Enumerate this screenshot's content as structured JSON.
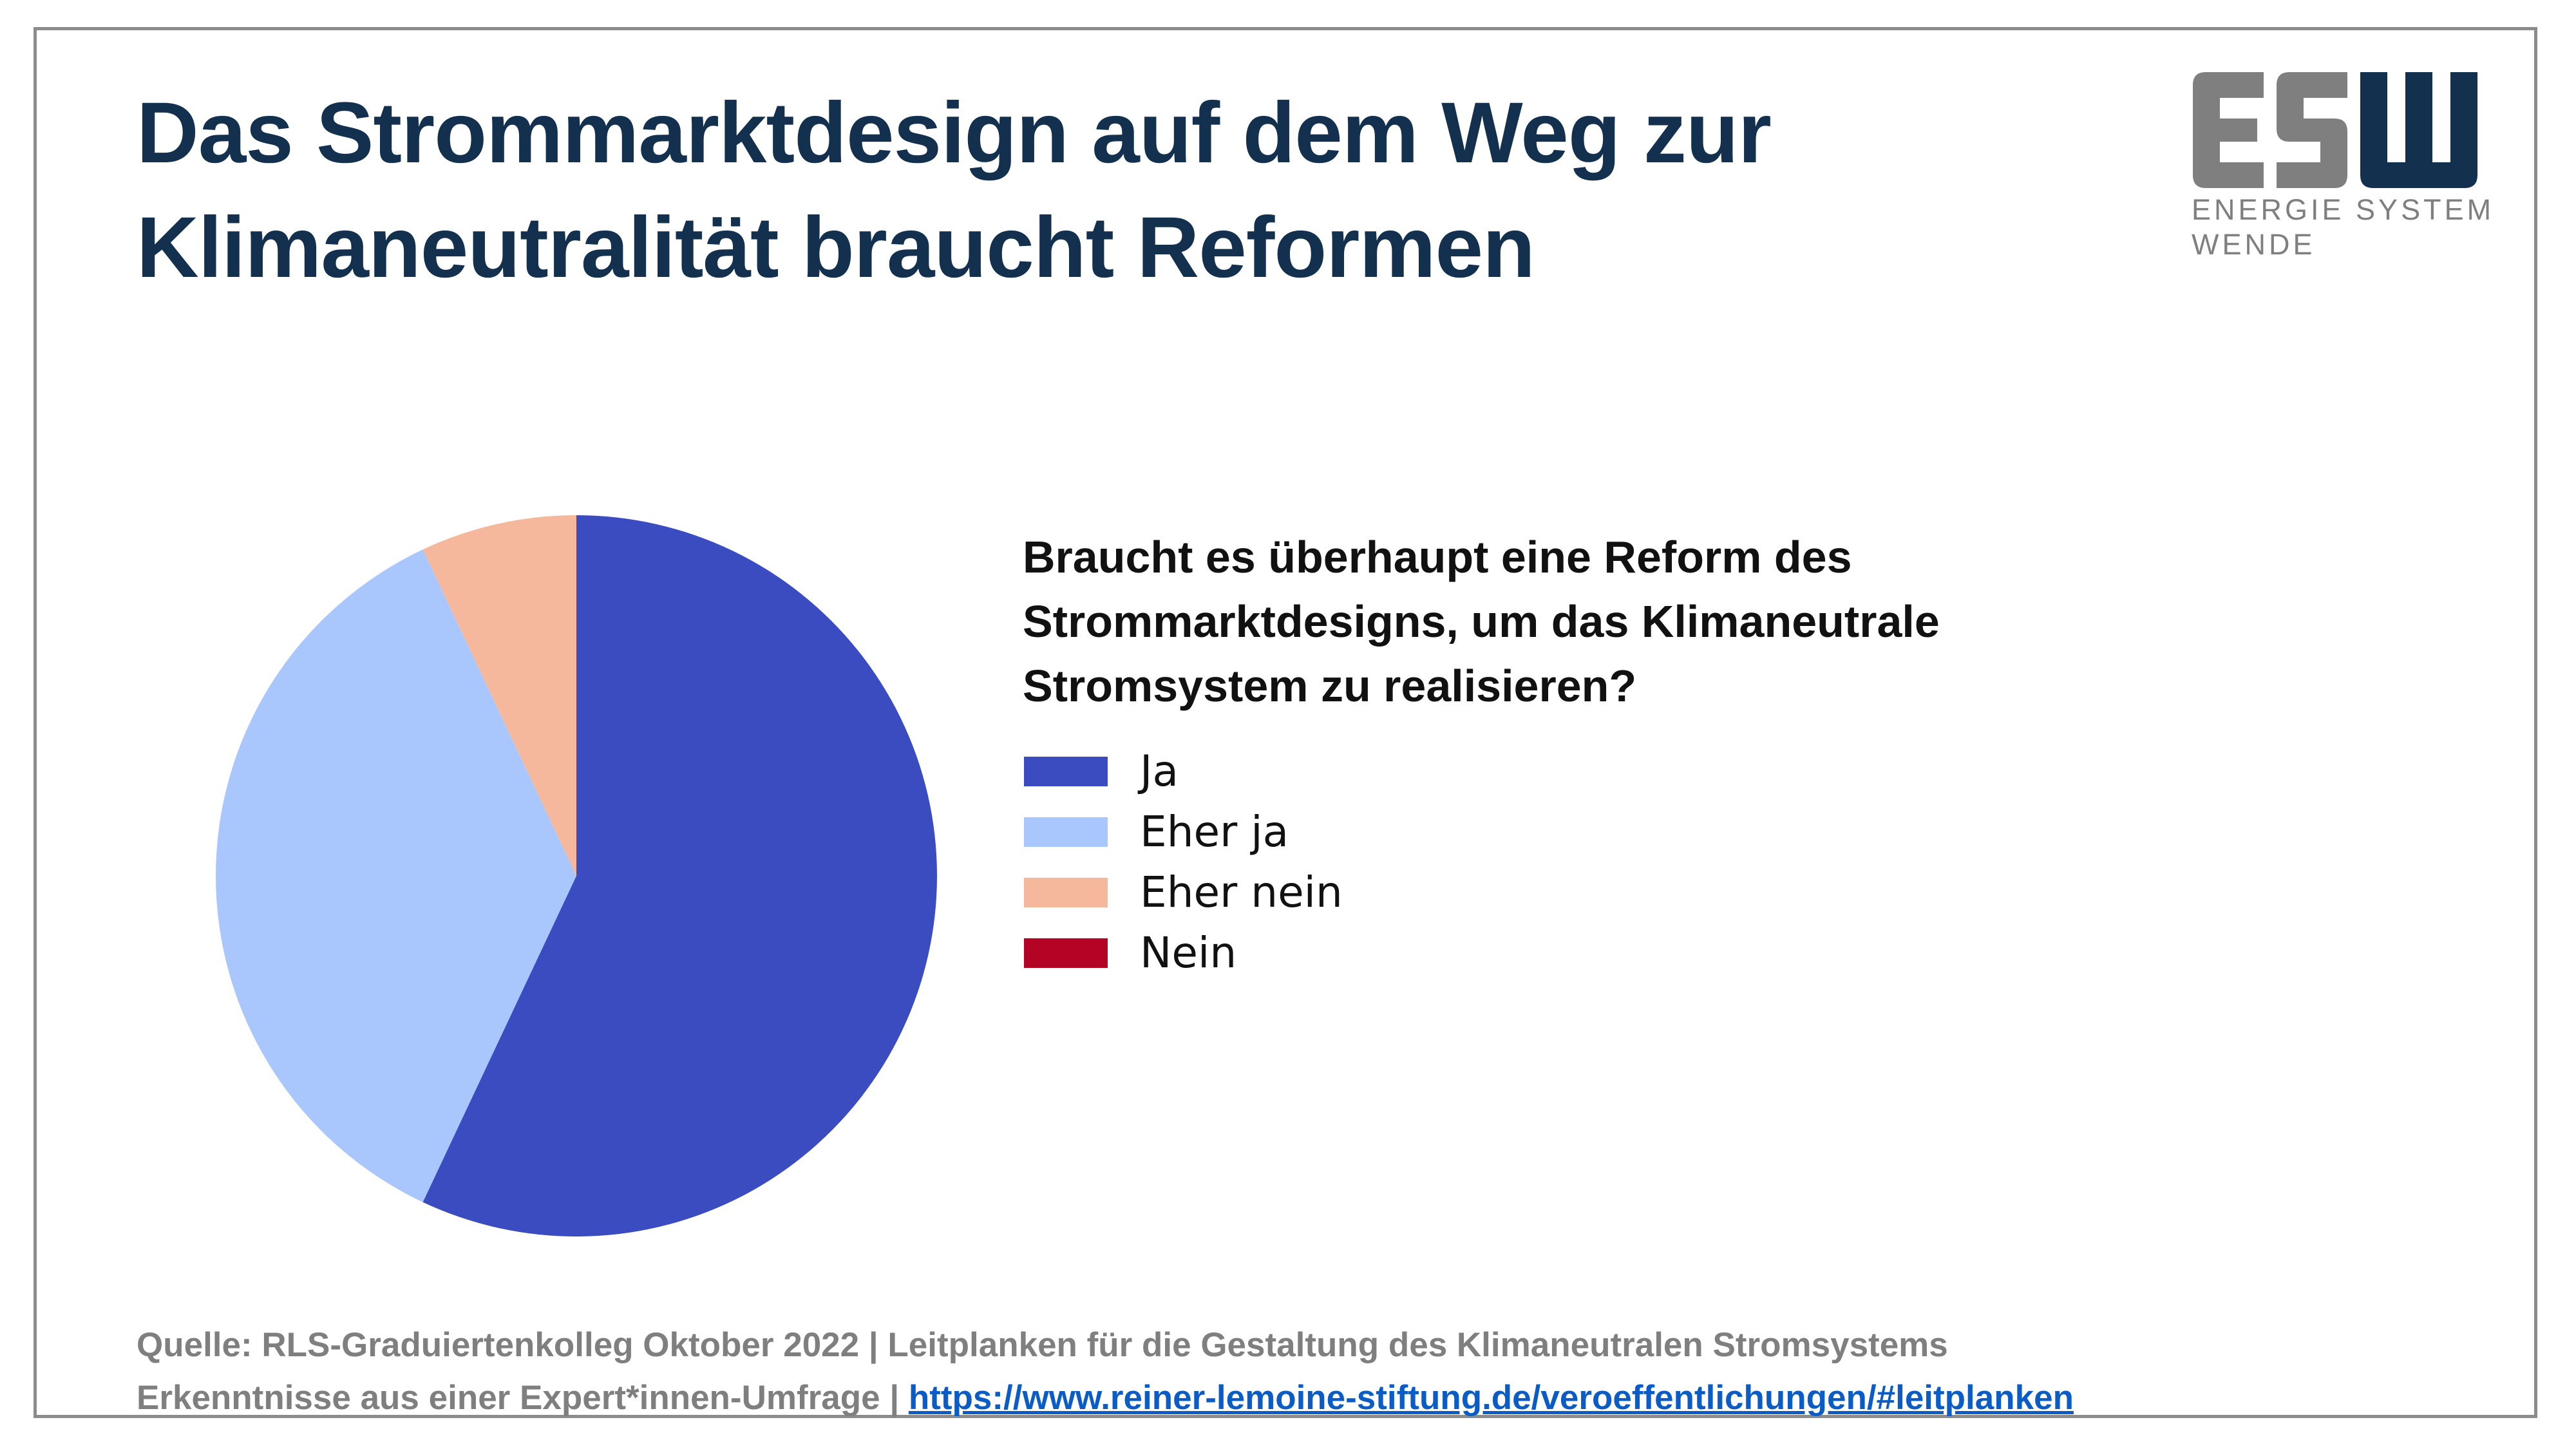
{
  "title": {
    "line1": "Das Strommarktdesign auf dem Weg zur",
    "line2": "Klimaneutralität braucht Reformen"
  },
  "logo": {
    "mark": "ESW",
    "line1": "ENERGIE SYSTEM",
    "line2": "WENDE",
    "colors": {
      "es": "#7f7f7f",
      "w": "#13304f"
    }
  },
  "question": {
    "line1": "Braucht es überhaupt eine Reform des",
    "line2": "Strommarktdesigns, um das Klimaneutrale",
    "line3": "Stromsystem zu realisieren?"
  },
  "chart_data": {
    "type": "pie",
    "title": "Braucht es überhaupt eine Reform des Strommarktdesigns, um das Klimaneutrale Stromsystem zu realisieren?",
    "categories": [
      "Ja",
      "Eher ja",
      "Eher nein",
      "Nein"
    ],
    "values": [
      57,
      36,
      7,
      0
    ],
    "colors": [
      "#3b4cc0",
      "#aac7fd",
      "#f6b89c",
      "#b40426"
    ],
    "start_angle_deg": 90,
    "direction": "clockwise",
    "legend_position": "right"
  },
  "footer": {
    "line1": "Quelle: RLS-Graduiertenkolleg Oktober 2022 | Leitplanken für die Gestaltung des Klimaneutralen Stromsystems",
    "line2_prefix": "Erkenntnisse aus einer Expert*innen-Umfrage | ",
    "link": "https://www.reiner-lemoine-stiftung.de/veroeffentlichungen/#leitplanken"
  }
}
